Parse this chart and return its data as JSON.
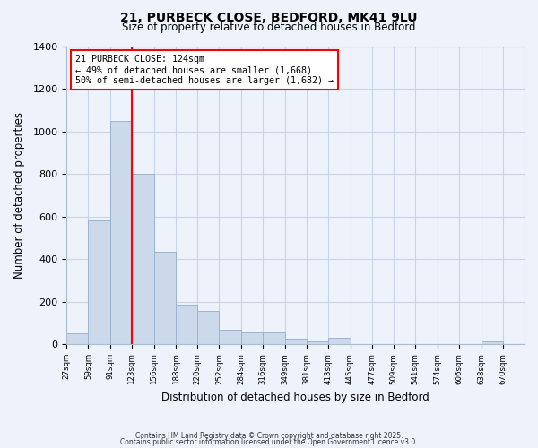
{
  "title_line1": "21, PURBECK CLOSE, BEDFORD, MK41 9LU",
  "title_line2": "Size of property relative to detached houses in Bedford",
  "xlabel": "Distribution of detached houses by size in Bedford",
  "ylabel": "Number of detached properties",
  "bar_left_edges": [
    27,
    59,
    91,
    123,
    156,
    188,
    220,
    252,
    284,
    316,
    349,
    381,
    413,
    445,
    477,
    509,
    541,
    574,
    606,
    638
  ],
  "bar_widths": [
    32,
    32,
    32,
    33,
    32,
    32,
    32,
    32,
    32,
    33,
    32,
    32,
    32,
    32,
    32,
    32,
    33,
    32,
    32,
    32
  ],
  "bar_heights": [
    50,
    580,
    1050,
    800,
    435,
    185,
    155,
    68,
    55,
    55,
    25,
    12,
    30,
    0,
    0,
    0,
    0,
    0,
    0,
    15
  ],
  "bar_color": "#ccd9ea",
  "bar_edge_color": "#9ab4d0",
  "tick_labels": [
    "27sqm",
    "59sqm",
    "91sqm",
    "123sqm",
    "156sqm",
    "188sqm",
    "220sqm",
    "252sqm",
    "284sqm",
    "316sqm",
    "349sqm",
    "381sqm",
    "413sqm",
    "445sqm",
    "477sqm",
    "509sqm",
    "541sqm",
    "574sqm",
    "606sqm",
    "638sqm",
    "670sqm"
  ],
  "tick_positions": [
    27,
    59,
    91,
    123,
    156,
    188,
    220,
    252,
    284,
    316,
    349,
    381,
    413,
    445,
    477,
    509,
    541,
    574,
    606,
    638,
    670
  ],
  "ylim": [
    0,
    1400
  ],
  "yticks": [
    0,
    200,
    400,
    600,
    800,
    1000,
    1200,
    1400
  ],
  "red_line_x": 123,
  "annotation_title": "21 PURBECK CLOSE: 124sqm",
  "annotation_line1": "← 49% of detached houses are smaller (1,668)",
  "annotation_line2": "50% of semi-detached houses are larger (1,682) →",
  "footer_line1": "Contains HM Land Registry data © Crown copyright and database right 2025.",
  "footer_line2": "Contains public sector information licensed under the Open Government Licence v3.0.",
  "background_color": "#eef2fb",
  "grid_color": "#c8d4e8"
}
